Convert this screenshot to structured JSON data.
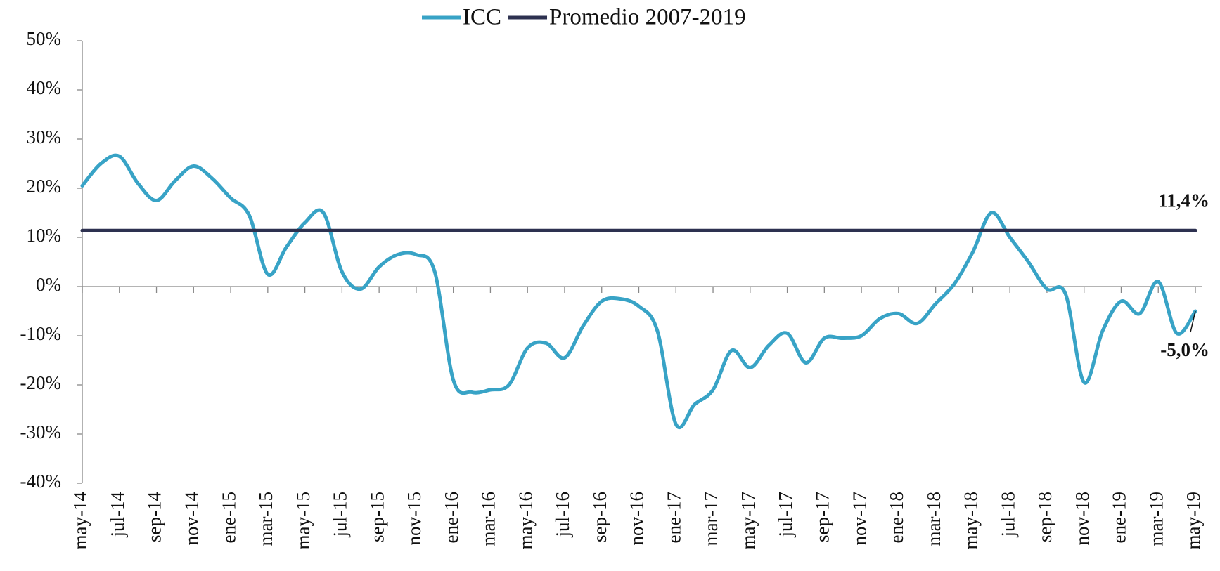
{
  "chart_data": {
    "type": "line",
    "categories": [
      "may-14",
      null,
      "jul-14",
      null,
      "sep-14",
      null,
      "nov-14",
      null,
      "ene-15",
      null,
      "mar-15",
      null,
      "may-15",
      null,
      "jul-15",
      null,
      "sep-15",
      null,
      "nov-15",
      null,
      "ene-16",
      null,
      "mar-16",
      null,
      "may-16",
      null,
      "jul-16",
      null,
      "sep-16",
      null,
      "nov-16",
      null,
      "ene-17",
      null,
      "mar-17",
      null,
      "may-17",
      null,
      "jul-17",
      null,
      "sep-17",
      null,
      "nov-17",
      null,
      "ene-18",
      null,
      "mar-18",
      null,
      "may-18",
      null,
      "jul-18",
      null,
      "sep-18",
      null,
      "nov-18",
      null,
      "ene-19",
      null,
      "mar-19",
      null,
      "may-19"
    ],
    "series": [
      {
        "name": "ICC",
        "color": "#38a3c6",
        "values": [
          20.5,
          25,
          26.5,
          21,
          17.5,
          21.5,
          24.5,
          22,
          18,
          14.5,
          2.5,
          8,
          13,
          15,
          3,
          -0.5,
          4,
          6.5,
          6.5,
          3,
          -19,
          -21.5,
          -21,
          -20,
          -12.5,
          -11.5,
          -14.5,
          -8,
          -3,
          -2.5,
          -4,
          -9,
          -28,
          -24,
          -21,
          -13,
          -16.5,
          -12,
          -9.5,
          -15.5,
          -10.5,
          -10.5,
          -10,
          -6.5,
          -5.5,
          -7.5,
          -3.5,
          0.5,
          7,
          15,
          10,
          5,
          -0.5,
          -1.5,
          -19.5,
          -9,
          -3,
          -5.5,
          1,
          -9.5,
          -5
        ],
        "value_labels": [
          null,
          null,
          null,
          null,
          null,
          null,
          null,
          null,
          null,
          null,
          null,
          null,
          null,
          null,
          null,
          null,
          null,
          null,
          null,
          null,
          null,
          null,
          null,
          null,
          null,
          null,
          null,
          null,
          null,
          null,
          null,
          null,
          null,
          null,
          null,
          null,
          null,
          null,
          null,
          null,
          null,
          null,
          null,
          null,
          null,
          null,
          null,
          null,
          null,
          null,
          null,
          null,
          null,
          null,
          null,
          null,
          null,
          null,
          null,
          null,
          "-5,0%"
        ],
        "label_color": "#2f8fab"
      },
      {
        "name": "Promedio 2007-2019",
        "color": "#2d3150",
        "values": [
          11.4,
          11.4,
          11.4,
          11.4,
          11.4,
          11.4,
          11.4,
          11.4,
          11.4,
          11.4,
          11.4,
          11.4,
          11.4,
          11.4,
          11.4,
          11.4,
          11.4,
          11.4,
          11.4,
          11.4,
          11.4,
          11.4,
          11.4,
          11.4,
          11.4,
          11.4,
          11.4,
          11.4,
          11.4,
          11.4,
          11.4,
          11.4,
          11.4,
          11.4,
          11.4,
          11.4,
          11.4,
          11.4,
          11.4,
          11.4,
          11.4,
          11.4,
          11.4,
          11.4,
          11.4,
          11.4,
          11.4,
          11.4,
          11.4,
          11.4,
          11.4,
          11.4,
          11.4,
          11.4,
          11.4,
          11.4,
          11.4,
          11.4,
          11.4,
          11.4,
          11.4
        ],
        "value_labels": [
          null,
          null,
          null,
          null,
          null,
          null,
          null,
          null,
          null,
          null,
          null,
          null,
          null,
          null,
          null,
          null,
          null,
          null,
          null,
          null,
          null,
          null,
          null,
          null,
          null,
          null,
          null,
          null,
          null,
          null,
          null,
          null,
          null,
          null,
          null,
          null,
          null,
          null,
          null,
          null,
          null,
          null,
          null,
          null,
          null,
          null,
          null,
          null,
          null,
          null,
          null,
          null,
          null,
          null,
          null,
          null,
          null,
          null,
          null,
          null,
          "11,4%"
        ],
        "label_color": "#1f2b5e"
      }
    ],
    "ylim": [
      -40,
      50
    ],
    "yticks": [
      {
        "value": -40,
        "label": "-40%"
      },
      {
        "value": -30,
        "label": "-30%"
      },
      {
        "value": -20,
        "label": "-20%"
      },
      {
        "value": -10,
        "label": "-10%"
      },
      {
        "value": 0,
        "label": "0%"
      },
      {
        "value": 10,
        "label": "10%"
      },
      {
        "value": 20,
        "label": "20%"
      },
      {
        "value": 30,
        "label": "30%"
      },
      {
        "value": 40,
        "label": "40%"
      },
      {
        "value": 50,
        "label": "50%"
      }
    ],
    "legend": "top",
    "grid": false
  }
}
